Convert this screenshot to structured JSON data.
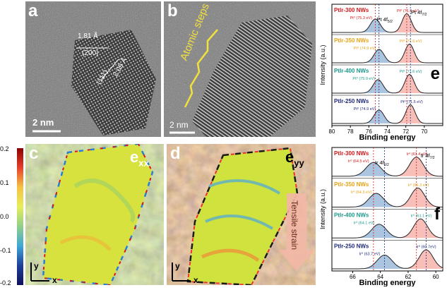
{
  "panels": {
    "a": {
      "letter": "a",
      "scale_bar": "2 nm",
      "spacing1": "1.81 Å",
      "plane1": "(200)",
      "spacing2": "2.09 Å",
      "plane2": "(111)"
    },
    "b": {
      "letter": "b",
      "scale_bar": "2 nm",
      "annotation": "Atomic steps"
    },
    "c": {
      "letter": "c",
      "strain_label": "e",
      "strain_sub": "xx",
      "axis_y": "y",
      "axis_x": "x"
    },
    "d": {
      "letter": "d",
      "strain_label": "e",
      "strain_sub": "yy",
      "arrow_text": "Tensile strain",
      "axis_y": "y",
      "axis_x": "x"
    },
    "e": {
      "letter": "e",
      "peak_left": "Pt 4f",
      "peak_left_sub": "5/2",
      "peak_right": "Pt 4f",
      "peak_right_sub": "7/2"
    },
    "f": {
      "letter": "f",
      "peak_left": "Ir 4f",
      "peak_left_sub": "5/2",
      "peak_right": "Ir 4f",
      "peak_right_sub": "7/2"
    }
  },
  "colorbar": {
    "ticks": [
      "0.2",
      "0.1",
      "0.0",
      "-0.1",
      "-0.2"
    ]
  },
  "colors": {
    "red": "#d7191c",
    "orange": "#e8a317",
    "teal": "#1a9a8c",
    "navy": "#1f2a7a",
    "fill_red": "#f4a9a0",
    "fill_blue": "#8fb1d6",
    "fill_yellow": "#f2d98a",
    "fill_green": "#a8d5b8"
  },
  "chart_data": [
    {
      "type": "line",
      "xlabel": "Binding energy",
      "ylabel": "Intensity (a.u.)",
      "xlim": [
        80,
        68
      ],
      "x_ticks": [
        "80",
        "78",
        "76",
        "74",
        "72",
        "70"
      ],
      "series": [
        {
          "name": "PtIr-300 NWs",
          "color": "#d7191c",
          "peak_left": "Pt⁰ (75.3 eV)",
          "peak_right": "Pt⁰ (71.9 eV)",
          "p1": 75.3,
          "p2": 71.9
        },
        {
          "name": "PtIr-350 NWs",
          "color": "#e8a317",
          "peak_left": "Pt⁰ (74.9 eV)",
          "peak_right": "Pt⁰ (71.6 eV)",
          "p1": 74.9,
          "p2": 71.6
        },
        {
          "name": "PtIr-400 NWs",
          "color": "#1a9a8c",
          "peak_left": "Pt⁰ (75.0 eV)",
          "peak_right": "Pt⁰ (71.6 eV)",
          "p1": 75.0,
          "p2": 71.6
        },
        {
          "name": "PtIr-250 NWs",
          "color": "#1f2a7a",
          "peak_left": "Pt⁰ (74.9 eV)",
          "peak_right": "Pt⁰ (71.5 eV)",
          "p1": 74.9,
          "p2": 71.5
        }
      ]
    },
    {
      "type": "line",
      "xlabel": "Binding energy",
      "ylabel": "Intensity (a.u.)",
      "xlim": [
        67.5,
        59.5
      ],
      "x_ticks": [
        "66",
        "64",
        "62",
        "60"
      ],
      "series": [
        {
          "name": "PtIr-300 NWs",
          "color": "#d7191c",
          "peak_left": "Ir⁰ (64.5 eV)",
          "peak_right": "Ir⁰ (61.4 eV)",
          "p1": 64.5,
          "p2": 61.4
        },
        {
          "name": "PtIr-350 NWs",
          "color": "#e8a317",
          "peak_left": "Ir⁰ (64.3 eV)",
          "peak_right": "Ir⁰ (61.3 eV)",
          "p1": 64.3,
          "p2": 61.3
        },
        {
          "name": "PtIr-400 NWs",
          "color": "#1a9a8c",
          "peak_left": "Ir⁰ (64.1 eV)",
          "peak_right": "Ir⁰ (61.1 eV)",
          "p1": 64.1,
          "p2": 61.1
        },
        {
          "name": "PtIr-250 NWs",
          "color": "#1f2a7a",
          "peak_left": "Ir⁰ (63.7 eV)",
          "peak_right": "Ir⁰ (60.7eV)",
          "p1": 63.7,
          "p2": 60.7
        }
      ]
    }
  ]
}
